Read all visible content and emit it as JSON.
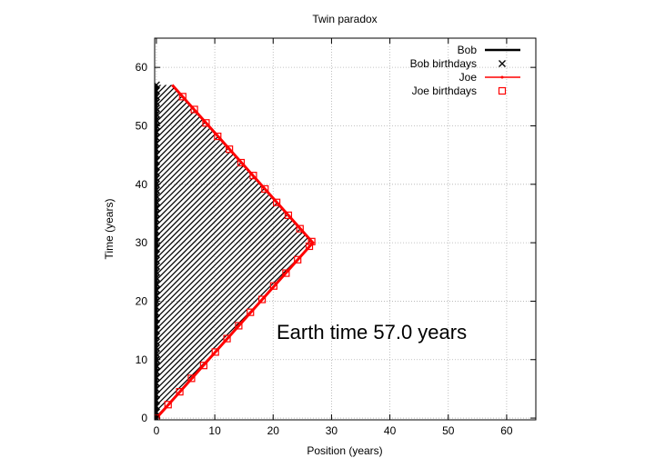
{
  "chart_data": {
    "type": "line",
    "title": "Twin paradox",
    "xlabel": "Position (years)",
    "ylabel": "Time (years)",
    "xlim": [
      -0.3,
      65
    ],
    "ylim": [
      -0.3,
      65
    ],
    "xticks": [
      0,
      10,
      20,
      30,
      40,
      50,
      60
    ],
    "yticks": [
      0,
      10,
      20,
      30,
      40,
      50,
      60
    ],
    "grid": true,
    "legend_position": "top-right",
    "annotation": "Earth time 57.0 years",
    "series": [
      {
        "name": "Bob",
        "color": "#000000",
        "points": [
          [
            0,
            0
          ],
          [
            0,
            57
          ]
        ]
      },
      {
        "name": "Bob birthdays",
        "color": "#000000",
        "marker": "x",
        "points": [
          [
            0,
            0
          ],
          [
            0,
            1
          ],
          [
            0,
            2
          ],
          [
            0,
            3
          ],
          [
            0,
            4
          ],
          [
            0,
            5
          ],
          [
            0,
            6
          ],
          [
            0,
            7
          ],
          [
            0,
            8
          ],
          [
            0,
            9
          ],
          [
            0,
            10
          ],
          [
            0,
            11
          ],
          [
            0,
            12
          ],
          [
            0,
            13
          ],
          [
            0,
            14
          ],
          [
            0,
            15
          ],
          [
            0,
            16
          ],
          [
            0,
            17
          ],
          [
            0,
            18
          ],
          [
            0,
            19
          ],
          [
            0,
            20
          ],
          [
            0,
            21
          ],
          [
            0,
            22
          ],
          [
            0,
            23
          ],
          [
            0,
            24
          ],
          [
            0,
            25
          ],
          [
            0,
            26
          ],
          [
            0,
            27
          ],
          [
            0,
            28
          ],
          [
            0,
            29
          ],
          [
            0,
            30
          ],
          [
            0,
            31
          ],
          [
            0,
            32
          ],
          [
            0,
            33
          ],
          [
            0,
            34
          ],
          [
            0,
            35
          ],
          [
            0,
            36
          ],
          [
            0,
            37
          ],
          [
            0,
            38
          ],
          [
            0,
            39
          ],
          [
            0,
            40
          ],
          [
            0,
            41
          ],
          [
            0,
            42
          ],
          [
            0,
            43
          ],
          [
            0,
            44
          ],
          [
            0,
            45
          ],
          [
            0,
            46
          ],
          [
            0,
            47
          ],
          [
            0,
            48
          ],
          [
            0,
            49
          ],
          [
            0,
            50
          ],
          [
            0,
            51
          ],
          [
            0,
            52
          ],
          [
            0,
            53
          ],
          [
            0,
            54
          ],
          [
            0,
            55
          ],
          [
            0,
            56
          ],
          [
            0,
            57
          ]
        ]
      },
      {
        "name": "Joe",
        "color": "#ff0000",
        "points": [
          [
            0,
            0
          ],
          [
            26.8,
            30
          ],
          [
            2.7,
            57
          ]
        ]
      },
      {
        "name": "Joe birthdays",
        "color": "#ff0000",
        "marker": "square",
        "points": [
          [
            0,
            0
          ],
          [
            2.0,
            2.3
          ],
          [
            4.0,
            4.5
          ],
          [
            6.0,
            6.8
          ],
          [
            8.1,
            9.0
          ],
          [
            10.1,
            11.3
          ],
          [
            12.1,
            13.6
          ],
          [
            14.1,
            15.8
          ],
          [
            16.1,
            18.1
          ],
          [
            18.1,
            20.3
          ],
          [
            20.1,
            22.6
          ],
          [
            22.2,
            24.8
          ],
          [
            24.2,
            27.1
          ],
          [
            26.2,
            29.4
          ],
          [
            26.6,
            30.2
          ],
          [
            24.6,
            32.4
          ],
          [
            22.6,
            34.7
          ],
          [
            20.6,
            36.9
          ],
          [
            18.6,
            39.2
          ],
          [
            16.6,
            41.5
          ],
          [
            14.5,
            43.7
          ],
          [
            12.5,
            46.0
          ],
          [
            10.5,
            48.2
          ],
          [
            8.5,
            50.5
          ],
          [
            6.5,
            52.8
          ],
          [
            4.5,
            55.0
          ]
        ]
      }
    ]
  }
}
